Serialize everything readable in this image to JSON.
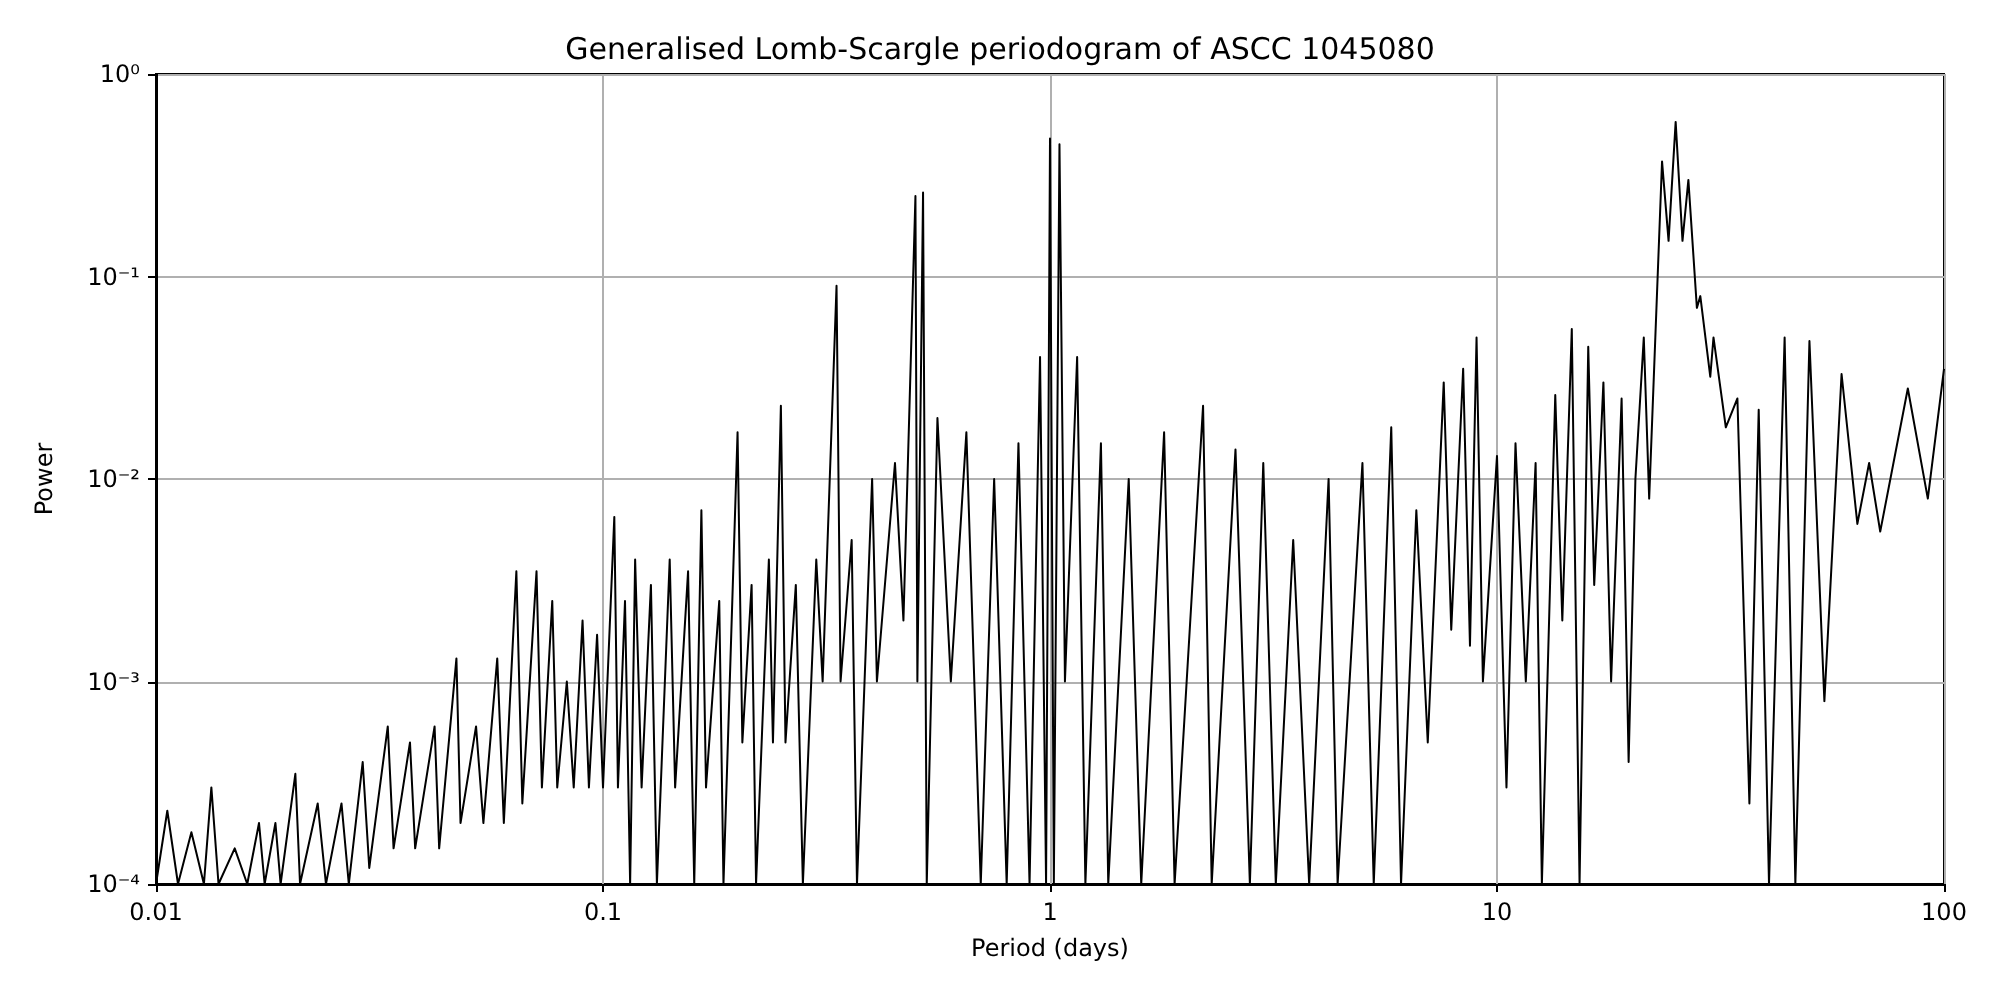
{
  "chart_data": {
    "type": "line",
    "title": "Generalised Lomb-Scargle periodogram of ASCC 1045080",
    "xlabel": "Period (days)",
    "ylabel": "Power",
    "log": "xy",
    "grid": true,
    "xlim": [
      0.01,
      100
    ],
    "ylim": [
      0.0001,
      1
    ],
    "xticks": [
      0.01,
      0.1,
      1,
      10,
      100
    ],
    "yticks": [
      {
        "value": 0.0001,
        "label": "10⁻⁴"
      },
      {
        "value": 0.001,
        "label": "10⁻³"
      },
      {
        "value": 0.01,
        "label": "10⁻²"
      },
      {
        "value": 0.1,
        "label": "10⁻¹"
      },
      {
        "value": 1,
        "label": "10⁰"
      }
    ],
    "series": [
      {
        "color": "#000000",
        "x": [
          0.01,
          0.0106,
          0.0112,
          0.012,
          0.0128,
          0.0133,
          0.0138,
          0.015,
          0.016,
          0.017,
          0.0175,
          0.0185,
          0.019,
          0.0205,
          0.021,
          0.023,
          0.024,
          0.026,
          0.027,
          0.029,
          0.03,
          0.033,
          0.034,
          0.037,
          0.038,
          0.042,
          0.043,
          0.047,
          0.048,
          0.052,
          0.054,
          0.058,
          0.06,
          0.064,
          0.066,
          0.071,
          0.073,
          0.077,
          0.079,
          0.083,
          0.086,
          0.09,
          0.093,
          0.097,
          0.1,
          0.106,
          0.108,
          0.112,
          0.115,
          0.118,
          0.122,
          0.128,
          0.132,
          0.141,
          0.145,
          0.155,
          0.16,
          0.166,
          0.17,
          0.182,
          0.186,
          0.2,
          0.205,
          0.215,
          0.22,
          0.235,
          0.24,
          0.25,
          0.256,
          0.27,
          0.28,
          0.3,
          0.31,
          0.333,
          0.34,
          0.36,
          0.37,
          0.4,
          0.41,
          0.45,
          0.47,
          0.5,
          0.505,
          0.52,
          0.53,
          0.56,
          0.6,
          0.65,
          0.7,
          0.75,
          0.8,
          0.85,
          0.9,
          0.95,
          0.98,
          1.0,
          1.02,
          1.05,
          1.08,
          1.15,
          1.2,
          1.3,
          1.35,
          1.5,
          1.6,
          1.8,
          1.9,
          2.2,
          2.3,
          2.6,
          2.8,
          3.0,
          3.2,
          3.5,
          3.8,
          4.2,
          4.4,
          5.0,
          5.3,
          5.8,
          6.1,
          6.6,
          7.0,
          7.6,
          7.9,
          8.4,
          8.7,
          9.0,
          9.3,
          10.0,
          10.5,
          11,
          11.6,
          12.2,
          12.6,
          13.5,
          14,
          14.7,
          15.3,
          16,
          16.5,
          17.3,
          18,
          19,
          19.7,
          20.4,
          21.3,
          21.9,
          23.4,
          24.2,
          25.1,
          26,
          26.8,
          28,
          28.5,
          30,
          30.5,
          32.5,
          34.5,
          36.7,
          38.5,
          40.6,
          44,
          46.5,
          50,
          54,
          59,
          64,
          68,
          72,
          83,
          92,
          100
        ],
        "values": [
          0.0001,
          0.00023,
          0.0001,
          0.00018,
          0.0001,
          0.0003,
          0.0001,
          0.00015,
          0.0001,
          0.0002,
          0.0001,
          0.0002,
          0.0001,
          0.00035,
          0.0001,
          0.00025,
          0.0001,
          0.00025,
          0.0001,
          0.0004,
          0.00012,
          0.0006,
          0.00015,
          0.0005,
          0.00015,
          0.0006,
          0.00015,
          0.0013,
          0.0002,
          0.0006,
          0.0002,
          0.0013,
          0.0002,
          0.0035,
          0.00025,
          0.0035,
          0.0003,
          0.0025,
          0.0003,
          0.001,
          0.0003,
          0.002,
          0.0003,
          0.0017,
          0.0003,
          0.0065,
          0.0003,
          0.0025,
          0.0001,
          0.004,
          0.0003,
          0.003,
          0.0001,
          0.004,
          0.0003,
          0.0035,
          0.0001,
          0.007,
          0.0003,
          0.0025,
          0.0001,
          0.017,
          0.0005,
          0.003,
          0.0001,
          0.004,
          0.0005,
          0.023,
          0.0005,
          0.003,
          0.0001,
          0.004,
          0.001,
          0.09,
          0.001,
          0.005,
          0.0001,
          0.01,
          0.001,
          0.012,
          0.002,
          0.25,
          0.001,
          0.26,
          0.0001,
          0.02,
          0.001,
          0.017,
          0.0001,
          0.01,
          0.0001,
          0.015,
          0.0001,
          0.04,
          0.0001,
          0.48,
          0.0001,
          0.45,
          0.001,
          0.04,
          0.0001,
          0.015,
          0.0001,
          0.01,
          0.0001,
          0.017,
          0.0001,
          0.023,
          0.0001,
          0.014,
          0.0001,
          0.012,
          0.0001,
          0.005,
          0.0001,
          0.01,
          0.0001,
          0.012,
          0.0001,
          0.018,
          0.0001,
          0.007,
          0.0005,
          0.03,
          0.0018,
          0.035,
          0.0015,
          0.05,
          0.001,
          0.013,
          0.0003,
          0.015,
          0.001,
          0.012,
          0.0001,
          0.026,
          0.002,
          0.055,
          0.0001,
          0.045,
          0.003,
          0.03,
          0.001,
          0.025,
          0.0004,
          0.01,
          0.05,
          0.008,
          0.37,
          0.15,
          0.58,
          0.15,
          0.3,
          0.07,
          0.08,
          0.032,
          0.05,
          0.018,
          0.025,
          0.00025,
          0.022,
          0.0001,
          0.05,
          0.0001,
          0.048,
          0.0008,
          0.033,
          0.006,
          0.012,
          0.0055,
          0.028,
          0.008,
          0.035
        ]
      }
    ]
  }
}
